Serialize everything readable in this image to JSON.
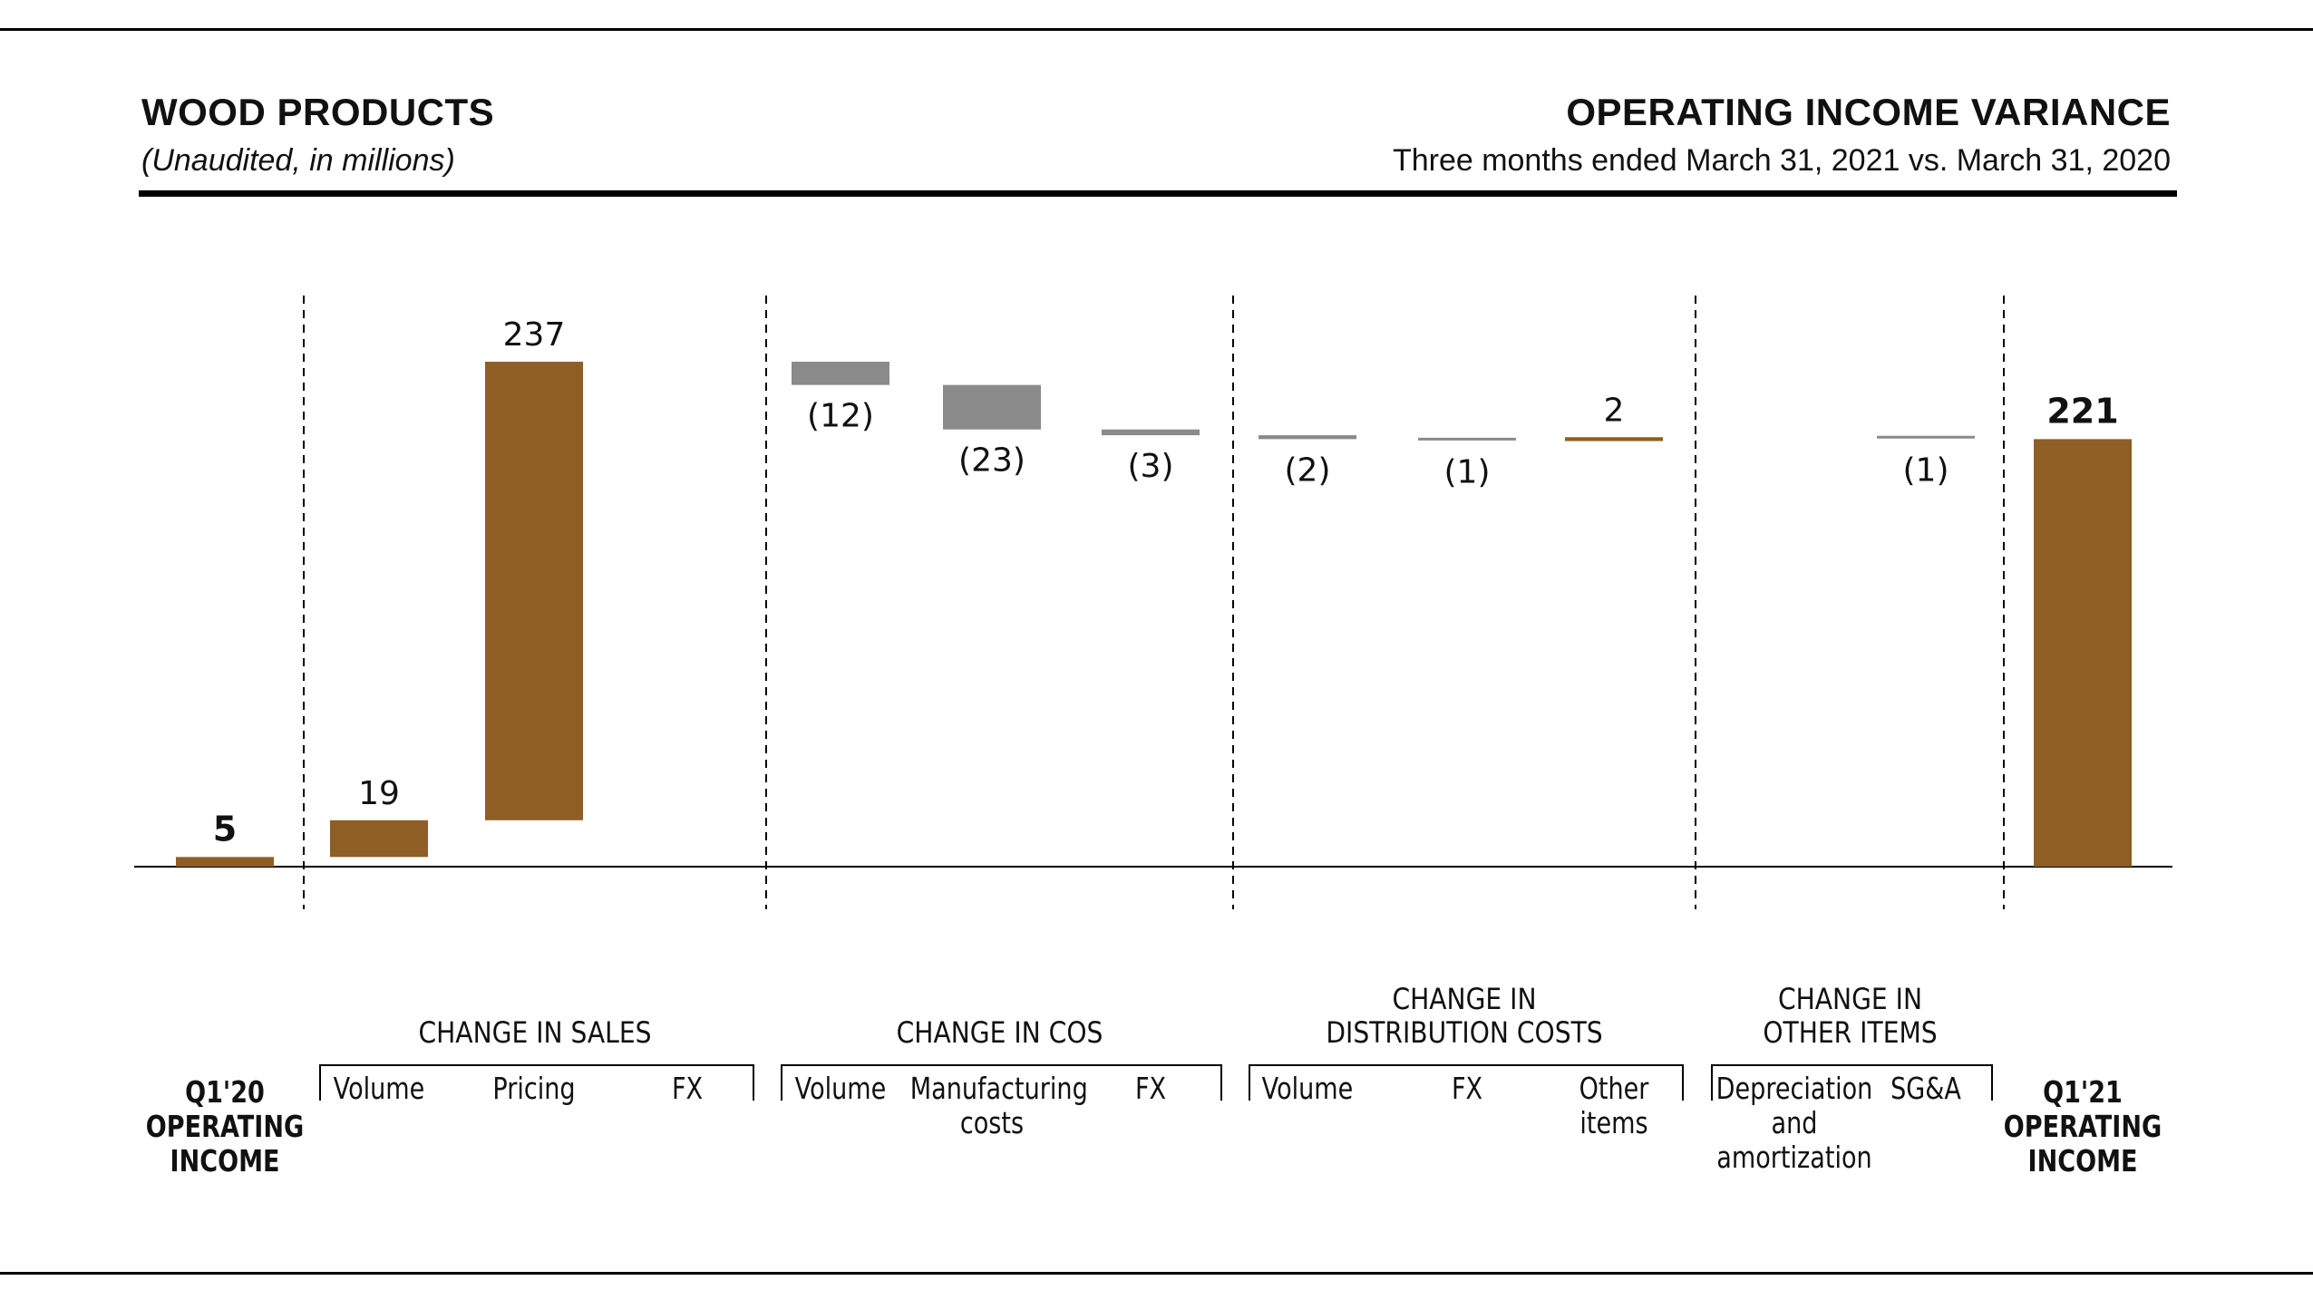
{
  "header": {
    "left_title": "WOOD PRODUCTS",
    "left_subtitle": "(Unaudited, in millions)",
    "right_title": "OPERATING INCOME VARIANCE",
    "right_subtitle": "Three months ended March 31, 2021 vs. March 31, 2020"
  },
  "colors": {
    "increase": "#8f5e24",
    "decrease": "#8a8a8a"
  },
  "groups": [
    {
      "id": "sales",
      "label_lines": [
        "CHANGE IN SALES"
      ]
    },
    {
      "id": "cos",
      "label_lines": [
        "CHANGE IN COS"
      ]
    },
    {
      "id": "dist",
      "label_lines": [
        "CHANGE IN",
        "DISTRIBUTION COSTS"
      ]
    },
    {
      "id": "other",
      "label_lines": [
        "CHANGE IN",
        "OTHER ITEMS"
      ]
    }
  ],
  "chart_data": {
    "type": "bar",
    "subtype": "waterfall",
    "start": {
      "label_lines": [
        "Q1'20",
        "OPERATING",
        "INCOME"
      ],
      "value": 5,
      "value_label": "5"
    },
    "end": {
      "label_lines": [
        "Q1'21",
        "OPERATING",
        "INCOME"
      ],
      "value": 221,
      "value_label": "221"
    },
    "steps": [
      {
        "group": "sales",
        "label_lines": [
          "Volume"
        ],
        "value": 19,
        "value_label": "19"
      },
      {
        "group": "sales",
        "label_lines": [
          "Pricing"
        ],
        "value": 237,
        "value_label": "237"
      },
      {
        "group": "sales",
        "label_lines": [
          "FX"
        ],
        "value": 0,
        "value_label": ""
      },
      {
        "group": "cos",
        "label_lines": [
          "Volume"
        ],
        "value": -12,
        "value_label": "(12)"
      },
      {
        "group": "cos",
        "label_lines": [
          "Manufacturing",
          "costs"
        ],
        "value": -23,
        "value_label": "(23)"
      },
      {
        "group": "cos",
        "label_lines": [
          "FX"
        ],
        "value": -3,
        "value_label": "(3)"
      },
      {
        "group": "dist",
        "label_lines": [
          "Volume"
        ],
        "value": -2,
        "value_label": "(2)"
      },
      {
        "group": "dist",
        "label_lines": [
          "FX"
        ],
        "value": -1,
        "value_label": "(1)"
      },
      {
        "group": "dist",
        "label_lines": [
          "Other",
          "items"
        ],
        "value": 2,
        "value_label": "2"
      },
      {
        "group": "other",
        "label_lines": [
          "Depreciation",
          "and",
          "amortization"
        ],
        "value": 0,
        "value_label": ""
      },
      {
        "group": "other",
        "label_lines": [
          "SG&A"
        ],
        "value": -1,
        "value_label": "(1)"
      }
    ]
  }
}
